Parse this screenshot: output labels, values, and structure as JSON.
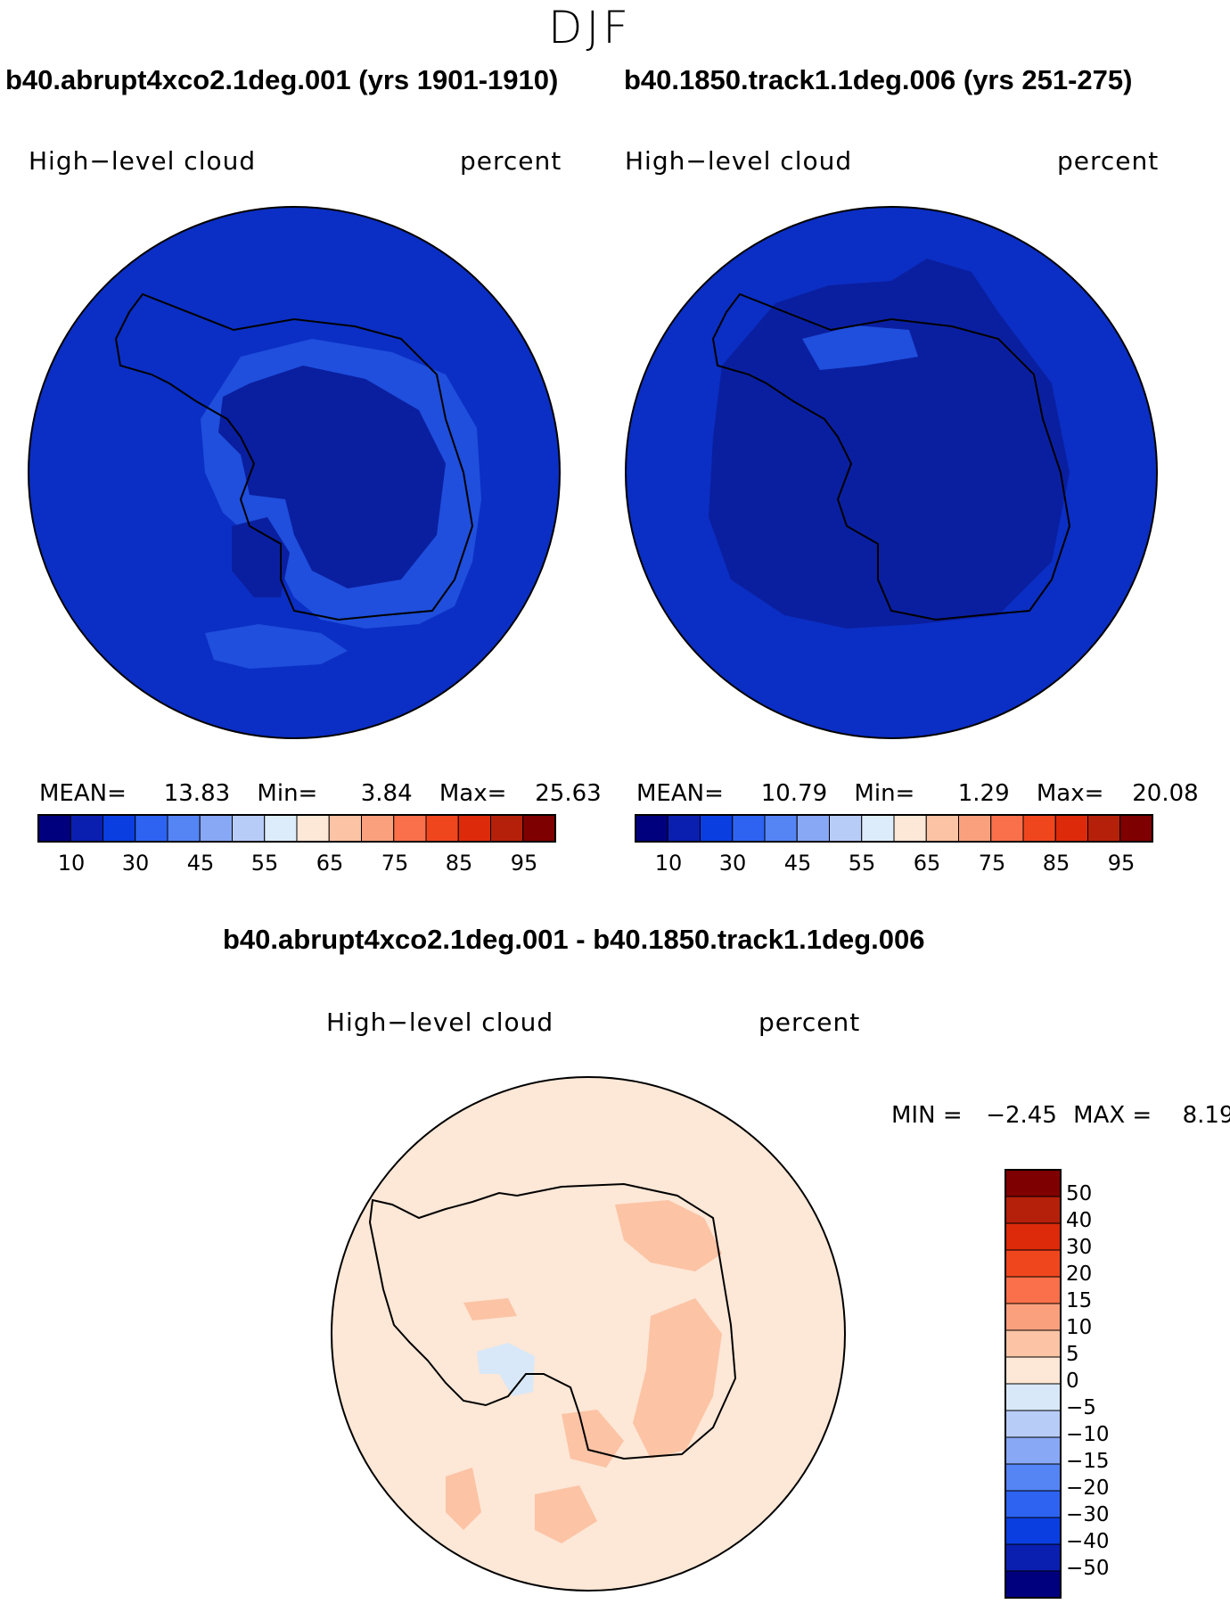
{
  "title": "DJF",
  "panels": [
    {
      "case_title": "b40.abrupt4xco2.1deg.001 (yrs 1901-1910)",
      "variable": "High−level cloud",
      "units": "percent",
      "stats": {
        "mean_label": "MEAN=",
        "mean": "13.83",
        "min_label": "Min=",
        "min": "3.84",
        "max_label": "Max=",
        "max": "25.63"
      }
    },
    {
      "case_title": "b40.1850.track1.1deg.006 (yrs 251-275)",
      "variable": "High−level cloud",
      "units": "percent",
      "stats": {
        "mean_label": "MEAN=",
        "mean": "10.79",
        "min_label": "Min=",
        "min": "1.29",
        "max_label": "Max=",
        "max": "20.08"
      }
    }
  ],
  "abs_colorbar": {
    "colors": [
      "#00007f",
      "#0a1fb0",
      "#0a3ee0",
      "#2d63f0",
      "#5584f5",
      "#88a8f5",
      "#b8ccf8",
      "#ddecfb",
      "#fde7d6",
      "#fcc3a5",
      "#fba07d",
      "#f9704a",
      "#f0461e",
      "#dc2a0a",
      "#b5200a",
      "#7f0000"
    ],
    "tick_labels": [
      "10",
      "30",
      "45",
      "55",
      "65",
      "75",
      "85",
      "95"
    ]
  },
  "diff": {
    "title": "b40.abrupt4xco2.1deg.001 - b40.1850.track1.1deg.006",
    "variable": "High−level cloud",
    "units": "percent",
    "min_label": "MIN =",
    "min": "−2.45",
    "max_label": "MAX =",
    "max": "8.19",
    "colors_top_to_bottom": [
      "#7f0000",
      "#b5200a",
      "#dc2a0a",
      "#f0461e",
      "#f9704a",
      "#fba07d",
      "#fcc3a5",
      "#fde7d6",
      "#d8e8f8",
      "#b8ccf8",
      "#88a8f5",
      "#5584f5",
      "#2d63f0",
      "#0a3ee0",
      "#0a1fb0",
      "#00007f"
    ],
    "tick_labels": [
      "50",
      "40",
      "30",
      "20",
      "15",
      "10",
      "5",
      "0",
      "−5",
      "−10",
      "−15",
      "−20",
      "−30",
      "−40",
      "−50"
    ]
  },
  "map_colors": {
    "ocean_abs": "#0b2fc4",
    "interior_abs": "#0a1fa0",
    "coastal_abs": "#1f4fdc",
    "diff_background": "#fde7d6",
    "diff_positive": "#fcc3a5",
    "diff_negative": "#d8e8f8"
  }
}
